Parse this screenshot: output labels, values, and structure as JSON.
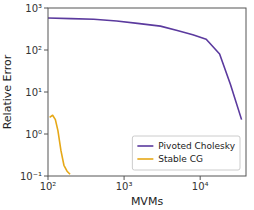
{
  "chart_data": {
    "type": "line",
    "xlabel": "MVMs",
    "ylabel": "Relative Error",
    "log": true,
    "xlim": [
      100,
      40000
    ],
    "ylim": [
      0.1,
      1000
    ],
    "xticks": [
      {
        "value": 100,
        "label": "10²"
      },
      {
        "value": 1000,
        "label": "10³"
      },
      {
        "value": 10000,
        "label": "10⁴"
      }
    ],
    "yticks": [
      {
        "value": 0.1,
        "label": "10⁻¹"
      },
      {
        "value": 1,
        "label": "10⁰"
      },
      {
        "value": 10,
        "label": "10¹"
      },
      {
        "value": 100,
        "label": "10²"
      },
      {
        "value": 1000,
        "label": "10³"
      }
    ],
    "legend": "lower right",
    "series": [
      {
        "name": "Pivoted Cholesky",
        "color": "#5b3a9e",
        "x": [
          100,
          200,
          400,
          800,
          1500,
          3000,
          5000,
          8000,
          12000,
          18000,
          25000,
          35000
        ],
        "values": [
          580,
          560,
          540,
          490,
          430,
          370,
          290,
          230,
          180,
          80,
          15,
          2.2
        ]
      },
      {
        "name": "Stable CG",
        "color": "#e6a817",
        "x": [
          105,
          115,
          125,
          135,
          148,
          162,
          178,
          195
        ],
        "values": [
          2.5,
          2.8,
          2.2,
          1.2,
          0.4,
          0.18,
          0.13,
          0.11
        ]
      }
    ]
  }
}
